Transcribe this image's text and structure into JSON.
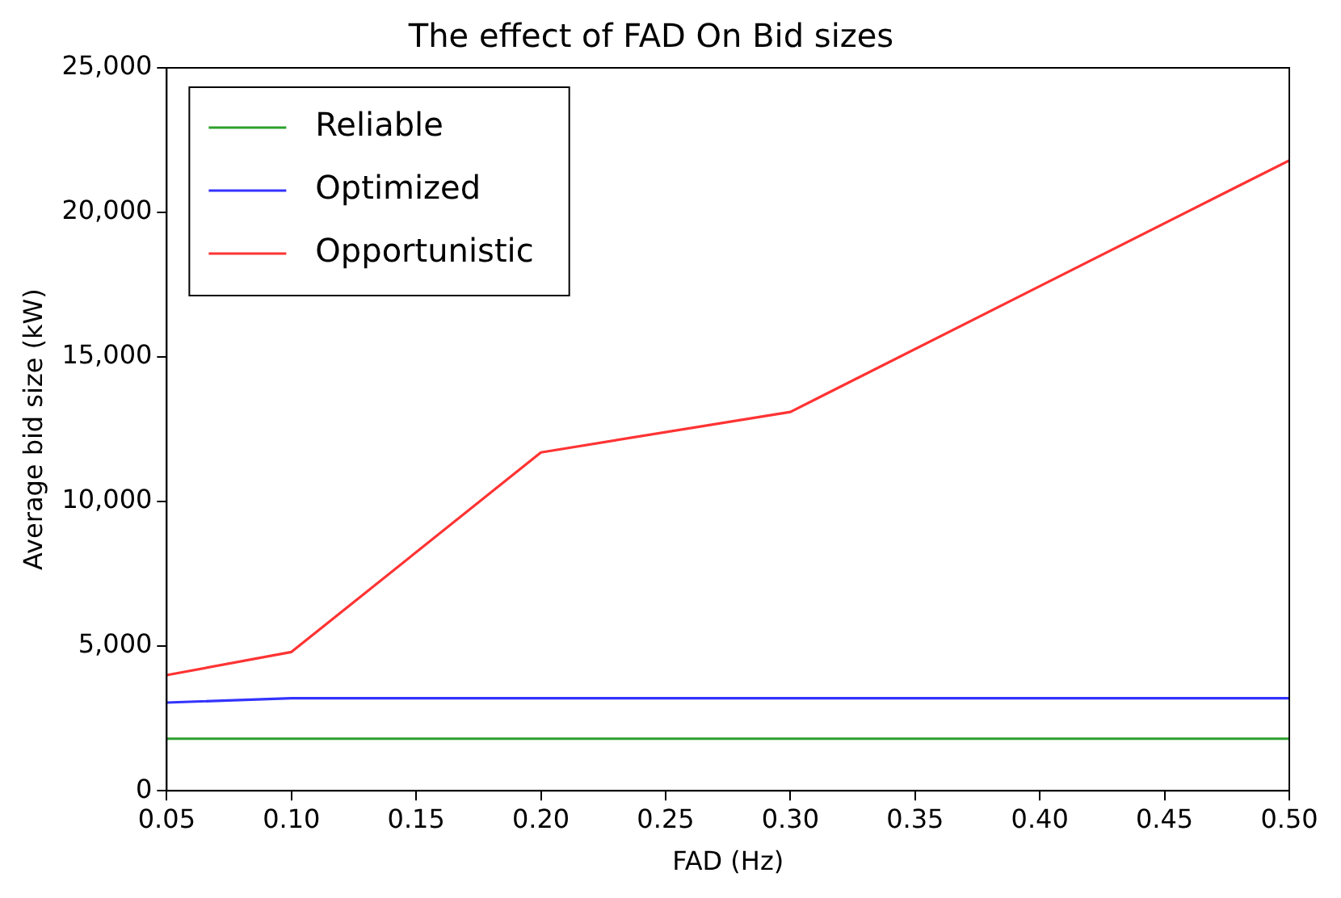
{
  "chart_data": {
    "type": "line",
    "title": "The effect of FAD On Bid sizes",
    "xlabel": "FAD (Hz)",
    "ylabel": "Average bid size (kW)",
    "x": [
      0.05,
      0.1,
      0.2,
      0.3,
      0.5
    ],
    "series": [
      {
        "name": "Reliable",
        "color": "#2ca02c",
        "values": [
          1800,
          1800,
          1800,
          1800,
          1800
        ]
      },
      {
        "name": "Optimized",
        "color": "#3333ff",
        "values": [
          3050,
          3200,
          3200,
          3200,
          3200
        ]
      },
      {
        "name": "Opportunistic",
        "color": "#ff3333",
        "values": [
          4000,
          4800,
          11700,
          13100,
          21800
        ]
      }
    ],
    "xlim": [
      0.05,
      0.5
    ],
    "xticks": [
      {
        "value": 0.05,
        "label": "0.05"
      },
      {
        "value": 0.1,
        "label": "0.10"
      },
      {
        "value": 0.15,
        "label": "0.15"
      },
      {
        "value": 0.2,
        "label": "0.20"
      },
      {
        "value": 0.25,
        "label": "0.25"
      },
      {
        "value": 0.3,
        "label": "0.30"
      },
      {
        "value": 0.35,
        "label": "0.35"
      },
      {
        "value": 0.4,
        "label": "0.40"
      },
      {
        "value": 0.45,
        "label": "0.45"
      },
      {
        "value": 0.5,
        "label": "0.50"
      }
    ],
    "ylim": [
      0,
      25000
    ],
    "yticks": [
      0,
      {
        "value": 5000,
        "label": "5,000"
      },
      {
        "value": 10000,
        "label": "10,000"
      },
      {
        "value": 15000,
        "label": "15,000"
      },
      {
        "value": 20000,
        "label": "20,000"
      },
      {
        "value": 25000,
        "label": "25,000"
      }
    ],
    "grid": false,
    "legend": "top left",
    "marker": "none",
    "line_style": "solid"
  }
}
